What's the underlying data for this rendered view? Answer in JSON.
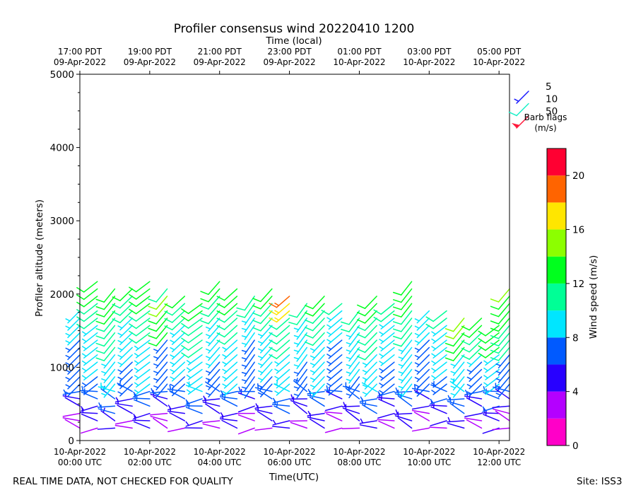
{
  "chart_data": {
    "type": "wind-barb profile (time-height)",
    "title": "Profiler consensus wind 20220410 1200",
    "top_xlabel": "Time (local)",
    "xlabel": "Time(UTC)",
    "ylabel": "Profiler altitude (meters)",
    "ylim": [
      0,
      5000
    ],
    "yticks": [
      "0",
      "1000",
      "2000",
      "3000",
      "4000",
      "5000"
    ],
    "xlim_hours_utc": [
      0,
      12.3
    ],
    "bottom_ticks": [
      {
        "h": 0,
        "line1": "10-Apr-2022",
        "line2": "00:00 UTC"
      },
      {
        "h": 2,
        "line1": "10-Apr-2022",
        "line2": "02:00 UTC"
      },
      {
        "h": 4,
        "line1": "10-Apr-2022",
        "line2": "04:00 UTC"
      },
      {
        "h": 6,
        "line1": "10-Apr-2022",
        "line2": "06:00 UTC"
      },
      {
        "h": 8,
        "line1": "10-Apr-2022",
        "line2": "08:00 UTC"
      },
      {
        "h": 10,
        "line1": "10-Apr-2022",
        "line2": "10:00 UTC"
      },
      {
        "h": 12,
        "line1": "10-Apr-2022",
        "line2": "12:00 UTC"
      }
    ],
    "top_ticks": [
      {
        "h": 0,
        "line1": "17:00 PDT",
        "line2": "09-Apr-2022"
      },
      {
        "h": 2,
        "line1": "19:00 PDT",
        "line2": "09-Apr-2022"
      },
      {
        "h": 4,
        "line1": "21:00 PDT",
        "line2": "09-Apr-2022"
      },
      {
        "h": 6,
        "line1": "23:00 PDT",
        "line2": "09-Apr-2022"
      },
      {
        "h": 8,
        "line1": "01:00 PDT",
        "line2": "10-Apr-2022"
      },
      {
        "h": 10,
        "line1": "03:00 PDT",
        "line2": "10-Apr-2022"
      },
      {
        "h": 12,
        "line1": "05:00 PDT",
        "line2": "10-Apr-2022"
      }
    ],
    "time_columns_hours": [
      0.0,
      0.5,
      1.0,
      1.5,
      2.0,
      2.5,
      3.0,
      3.5,
      4.0,
      4.5,
      5.0,
      5.5,
      6.0,
      6.5,
      7.0,
      7.5,
      8.0,
      8.5,
      9.0,
      9.5,
      10.0,
      10.5,
      11.0,
      11.5,
      12.0,
      12.3
    ],
    "profile_top_m": [
      1850,
      2200,
      2150,
      2150,
      2200,
      2150,
      2050,
      1950,
      2200,
      2150,
      2050,
      2100,
      2000,
      1950,
      2000,
      1950,
      1800,
      2000,
      1950,
      2200,
      1850,
      1800,
      1750,
      1700,
      1600,
      2100
    ],
    "speed_profile_ms": {
      "low": 2.5,
      "low_top_m": 700,
      "mid": 7.5,
      "mid_top_m": 1500,
      "upper": 12,
      "upper_top_m": 2300
    },
    "barb_legend": {
      "title_line1": "Barb flags",
      "title_line2": "(m/s)",
      "entries": [
        {
          "label": "5",
          "speed": 5,
          "color": "#1a1aff"
        },
        {
          "label": "10",
          "speed": 10,
          "color": "#19f0c8"
        },
        {
          "label": "50",
          "speed": 50,
          "color": "#ff1a3c"
        }
      ]
    },
    "colorbar": {
      "label": "Wind speed (m/s)",
      "min": 0,
      "max": 22,
      "ticks": [
        "0",
        "4",
        "8",
        "12",
        "16",
        "20"
      ],
      "ticks_values": [
        0,
        4,
        8,
        12,
        16,
        20
      ],
      "colors": [
        "#ff00c8",
        "#b400ff",
        "#2800ff",
        "#005aff",
        "#00e6ff",
        "#00ff96",
        "#00ff1e",
        "#8cff00",
        "#ffe600",
        "#ff6400",
        "#ff0032"
      ]
    }
  },
  "footer": {
    "left": "REAL TIME DATA, NOT CHECKED FOR QUALITY",
    "right": "Site: ISS3"
  }
}
